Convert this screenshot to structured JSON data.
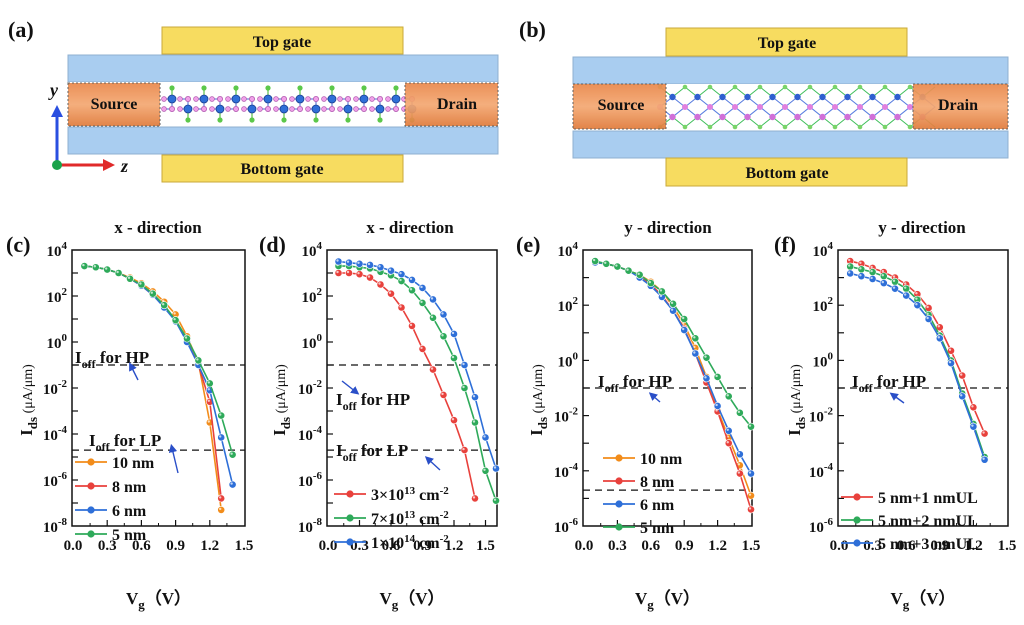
{
  "panels": {
    "a": {
      "label": "(a)",
      "top_gate": "Top gate",
      "bottom_gate": "Bottom gate",
      "source": "Source",
      "drain": "Drain",
      "axis_y": "y",
      "axis_z": "z",
      "channel_view": "zigzag side view"
    },
    "b": {
      "label": "(b)",
      "top_gate": "Top gate",
      "bottom_gate": "Bottom gate",
      "source": "Source",
      "drain": "Drain",
      "channel_view": "diamond lattice side view"
    }
  },
  "colors": {
    "orange": "#f28c1a",
    "red": "#e8413c",
    "blue": "#2e6fd8",
    "green": "#2eaa5a",
    "gate": "#f7dc60",
    "oxide": "#a9cdf0",
    "contact": "#ef9a5a",
    "arrow": "#2a4fc8"
  },
  "chart_data": [
    {
      "id": "c",
      "panel_label": "(c)",
      "type": "line",
      "title": "x - direction",
      "xlabel": "Vg (V)",
      "ylabel": "Ids (μA/μm)",
      "yscale": "log",
      "xlim": [
        0.0,
        1.5
      ],
      "ylim_exp": [
        -8,
        4
      ],
      "xticks": [
        "0.0",
        "0.3",
        "0.6",
        "0.9",
        "1.2",
        "1.5"
      ],
      "yticks_exp": [
        4,
        2,
        0,
        -2,
        -4,
        -6,
        -8
      ],
      "hlines": [
        {
          "label": "Ioff for HP",
          "log10": -1.0
        },
        {
          "label": "Ioff for LP",
          "log10": -4.7
        }
      ],
      "series": [
        {
          "name": "10 nm",
          "color": "orange",
          "x": [
            0.1,
            0.2,
            0.3,
            0.4,
            0.5,
            0.6,
            0.7,
            0.8,
            0.9,
            1.0,
            1.1,
            1.2,
            1.3
          ],
          "log10": [
            3.3,
            3.25,
            3.15,
            3.0,
            2.8,
            2.55,
            2.2,
            1.75,
            1.2,
            0.25,
            -0.9,
            -3.5,
            -7.3
          ]
        },
        {
          "name": "8 nm",
          "color": "red",
          "x": [
            0.1,
            0.2,
            0.3,
            0.4,
            0.5,
            0.6,
            0.7,
            0.8,
            0.9,
            1.0,
            1.1,
            1.2,
            1.3
          ],
          "log10": [
            3.3,
            3.25,
            3.15,
            3.0,
            2.75,
            2.45,
            2.05,
            1.55,
            0.95,
            0.05,
            -1.0,
            -2.6,
            -6.8
          ]
        },
        {
          "name": "6 nm",
          "color": "blue",
          "x": [
            0.1,
            0.2,
            0.3,
            0.4,
            0.5,
            0.6,
            0.7,
            0.8,
            0.9,
            1.0,
            1.1,
            1.2,
            1.3,
            1.4
          ],
          "log10": [
            3.3,
            3.25,
            3.15,
            3.0,
            2.75,
            2.45,
            2.05,
            1.5,
            0.9,
            0.0,
            -1.0,
            -2.1,
            -4.15,
            -6.2
          ]
        },
        {
          "name": "5 nm",
          "color": "green",
          "x": [
            0.1,
            0.2,
            0.3,
            0.4,
            0.5,
            0.6,
            0.7,
            0.8,
            0.9,
            1.0,
            1.1,
            1.2,
            1.3,
            1.4
          ],
          "log10": [
            3.3,
            3.25,
            3.15,
            3.0,
            2.75,
            2.5,
            2.1,
            1.6,
            0.95,
            0.15,
            -0.8,
            -1.8,
            -3.2,
            -4.9
          ]
        }
      ]
    },
    {
      "id": "d",
      "panel_label": "(d)",
      "type": "line",
      "title": "x - direction",
      "xlabel": "Vg (V)",
      "ylabel": "Ids (μA/μm)",
      "yscale": "log",
      "xlim": [
        0.0,
        1.6
      ],
      "ylim_exp": [
        -8,
        4
      ],
      "xticks": [
        "0.0",
        "0.3",
        "0.6",
        "0.9",
        "1.2",
        "1.5"
      ],
      "yticks_exp": [
        4,
        2,
        0,
        -2,
        -4,
        -6,
        -8
      ],
      "hlines": [
        {
          "label": "Ioff for HP",
          "log10": -1.0
        },
        {
          "label": "Ioff for LP",
          "log10": -4.7
        }
      ],
      "series": [
        {
          "name": "3×10^13 cm^-2",
          "legend_main": "3×10",
          "legend_sup": "13",
          "legend_unit": " cm",
          "legend_unit_sup": "-2",
          "color": "red",
          "x": [
            0.1,
            0.2,
            0.3,
            0.4,
            0.5,
            0.6,
            0.7,
            0.8,
            0.9,
            1.0,
            1.1,
            1.2,
            1.3,
            1.4
          ],
          "log10": [
            3.0,
            3.0,
            2.95,
            2.8,
            2.5,
            2.1,
            1.5,
            0.7,
            -0.3,
            -1.2,
            -2.3,
            -3.4,
            -4.7,
            -6.8
          ]
        },
        {
          "name": "7×10^13 cm^-2",
          "legend_main": "7×10",
          "legend_sup": "13",
          "legend_unit": " cm",
          "legend_unit_sup": "-2",
          "color": "green",
          "x": [
            0.1,
            0.2,
            0.3,
            0.4,
            0.5,
            0.6,
            0.7,
            0.8,
            0.9,
            1.0,
            1.1,
            1.2,
            1.3,
            1.4,
            1.5,
            1.6
          ],
          "log10": [
            3.3,
            3.3,
            3.25,
            3.2,
            3.05,
            2.9,
            2.65,
            2.25,
            1.7,
            1.05,
            0.25,
            -0.7,
            -2.0,
            -3.5,
            -5.6,
            -6.9
          ]
        },
        {
          "name": "1×10^14 cm^-2",
          "legend_main": "1×10",
          "legend_sup": "14",
          "legend_unit": " cm",
          "legend_unit_sup": "-2",
          "color": "blue",
          "x": [
            0.1,
            0.2,
            0.3,
            0.4,
            0.5,
            0.6,
            0.7,
            0.8,
            0.9,
            1.0,
            1.1,
            1.2,
            1.3,
            1.4,
            1.5,
            1.6
          ],
          "log10": [
            3.5,
            3.45,
            3.4,
            3.35,
            3.25,
            3.1,
            2.95,
            2.7,
            2.35,
            1.85,
            1.2,
            0.35,
            -1.0,
            -2.4,
            -4.15,
            -5.5
          ]
        }
      ]
    },
    {
      "id": "e",
      "panel_label": "(e)",
      "type": "line",
      "title": "y - direction",
      "xlabel": "Vg (V)",
      "ylabel": "Ids (μA/μm)",
      "yscale": "log",
      "xlim": [
        0.0,
        1.5
      ],
      "ylim_exp": [
        -6,
        4
      ],
      "xticks": [
        "0.0",
        "0.3",
        "0.6",
        "0.9",
        "1.2",
        "1.5"
      ],
      "yticks_exp": [
        4,
        2,
        0,
        -2,
        -4,
        -6
      ],
      "hlines": [
        {
          "label": "Ioff for HP",
          "log10": -1.0
        },
        {
          "label": "",
          "log10": -4.7
        }
      ],
      "series": [
        {
          "name": "10 nm",
          "color": "orange",
          "x": [
            0.1,
            0.2,
            0.3,
            0.4,
            0.5,
            0.6,
            0.7,
            0.8,
            0.9,
            1.0,
            1.1,
            1.2,
            1.3,
            1.4,
            1.5
          ],
          "log10": [
            3.55,
            3.5,
            3.4,
            3.25,
            3.1,
            2.85,
            2.5,
            1.95,
            1.3,
            0.45,
            -0.6,
            -1.8,
            -2.8,
            -3.8,
            -4.9
          ]
        },
        {
          "name": "8 nm",
          "color": "red",
          "x": [
            0.1,
            0.2,
            0.3,
            0.4,
            0.5,
            0.6,
            0.7,
            0.8,
            0.9,
            1.0,
            1.1,
            1.2,
            1.3,
            1.4,
            1.5
          ],
          "log10": [
            3.55,
            3.5,
            3.4,
            3.25,
            3.05,
            2.75,
            2.35,
            1.8,
            1.15,
            0.25,
            -0.8,
            -1.85,
            -3.0,
            -4.1,
            -5.4
          ]
        },
        {
          "name": "6 nm",
          "color": "blue",
          "x": [
            0.1,
            0.2,
            0.3,
            0.4,
            0.5,
            0.6,
            0.7,
            0.8,
            0.9,
            1.0,
            1.1,
            1.2,
            1.3,
            1.4,
            1.5
          ],
          "log10": [
            3.55,
            3.5,
            3.4,
            3.25,
            3.0,
            2.7,
            2.3,
            1.8,
            1.1,
            0.25,
            -0.65,
            -1.65,
            -2.55,
            -3.4,
            -4.1
          ]
        },
        {
          "name": "5 nm",
          "color": "green",
          "x": [
            0.1,
            0.2,
            0.3,
            0.4,
            0.5,
            0.6,
            0.7,
            0.8,
            0.9,
            1.0,
            1.1,
            1.2,
            1.3,
            1.4,
            1.5
          ],
          "log10": [
            3.6,
            3.5,
            3.4,
            3.25,
            3.1,
            2.8,
            2.5,
            2.05,
            1.5,
            0.8,
            0.1,
            -0.6,
            -1.3,
            -1.9,
            -2.4
          ]
        }
      ]
    },
    {
      "id": "f",
      "panel_label": "(f)",
      "type": "line",
      "title": "y - direction",
      "xlabel": "Vg (V)",
      "ylabel": "Ids (μA/μm)",
      "yscale": "log",
      "xlim": [
        0.0,
        1.5
      ],
      "ylim_exp": [
        -6,
        4
      ],
      "xticks": [
        "0.0",
        "0.3",
        "0.6",
        "0.9",
        "1.2",
        "1.5"
      ],
      "yticks_exp": [
        4,
        2,
        0,
        -2,
        -4,
        -6
      ],
      "hlines": [
        {
          "label": "Ioff for HP",
          "log10": -1.0
        }
      ],
      "series": [
        {
          "name": "5 nm+1 nmUL",
          "color": "red",
          "x": [
            0.1,
            0.2,
            0.3,
            0.4,
            0.5,
            0.6,
            0.7,
            0.8,
            0.9,
            1.0,
            1.1,
            1.2,
            1.3
          ],
          "log10": [
            3.6,
            3.5,
            3.35,
            3.2,
            3.0,
            2.75,
            2.4,
            1.9,
            1.2,
            0.35,
            -0.55,
            -1.7,
            -2.65
          ]
        },
        {
          "name": "5 nm+2 nmUL",
          "color": "green",
          "x": [
            0.1,
            0.2,
            0.3,
            0.4,
            0.5,
            0.6,
            0.7,
            0.8,
            0.9,
            1.0,
            1.1,
            1.2,
            1.3
          ],
          "log10": [
            3.4,
            3.3,
            3.2,
            3.05,
            2.85,
            2.6,
            2.2,
            1.65,
            0.9,
            0.0,
            -1.2,
            -2.3,
            -3.5
          ]
        },
        {
          "name": "5 nm+3 nmUL",
          "color": "blue",
          "x": [
            0.1,
            0.2,
            0.3,
            0.4,
            0.5,
            0.6,
            0.7,
            0.8,
            0.9,
            1.0,
            1.1,
            1.2,
            1.3
          ],
          "log10": [
            3.15,
            3.05,
            2.95,
            2.8,
            2.6,
            2.35,
            2.0,
            1.5,
            0.8,
            -0.1,
            -1.3,
            -2.4,
            -3.6
          ]
        }
      ]
    }
  ]
}
